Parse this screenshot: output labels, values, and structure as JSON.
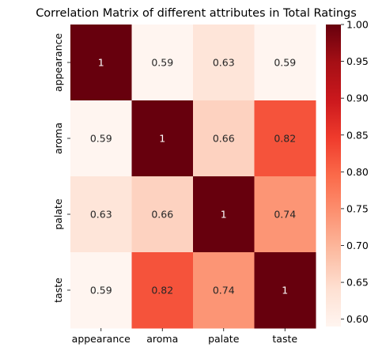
{
  "chart_data": {
    "type": "heatmap",
    "title": "Correlation Matrix of different attributes in Total Ratings",
    "xlabel": "",
    "ylabel": "",
    "x_categories": [
      "appearance",
      "aroma",
      "palate",
      "taste"
    ],
    "y_categories": [
      "appearance",
      "aroma",
      "palate",
      "taste"
    ],
    "values": [
      [
        1,
        0.59,
        0.63,
        0.59
      ],
      [
        0.59,
        1,
        0.66,
        0.82
      ],
      [
        0.63,
        0.66,
        1,
        0.74
      ],
      [
        0.59,
        0.82,
        0.74,
        1
      ]
    ],
    "cell_labels": [
      [
        "1",
        "0.59",
        "0.63",
        "0.59"
      ],
      [
        "0.59",
        "1",
        "0.66",
        "0.82"
      ],
      [
        "0.63",
        "0.66",
        "1",
        "0.74"
      ],
      [
        "0.59",
        "0.82",
        "0.74",
        "1"
      ]
    ],
    "colormap": "Reds",
    "colormap_stops": [
      "#fff5f0",
      "#fee0d2",
      "#fcbba1",
      "#fc9272",
      "#fb6a4a",
      "#ef3b2c",
      "#cb181d",
      "#a50f15",
      "#67000d"
    ],
    "vmin": 0.59,
    "vmax": 1.0,
    "colorbar_ticks": [
      0.6,
      0.65,
      0.7,
      0.75,
      0.8,
      0.85,
      0.9,
      0.95,
      1.0
    ],
    "colorbar_tick_labels": [
      "0.60",
      "0.65",
      "0.70",
      "0.75",
      "0.80",
      "0.85",
      "0.90",
      "0.95",
      "1.00"
    ],
    "grid": false,
    "legend": "colorbar-right"
  }
}
